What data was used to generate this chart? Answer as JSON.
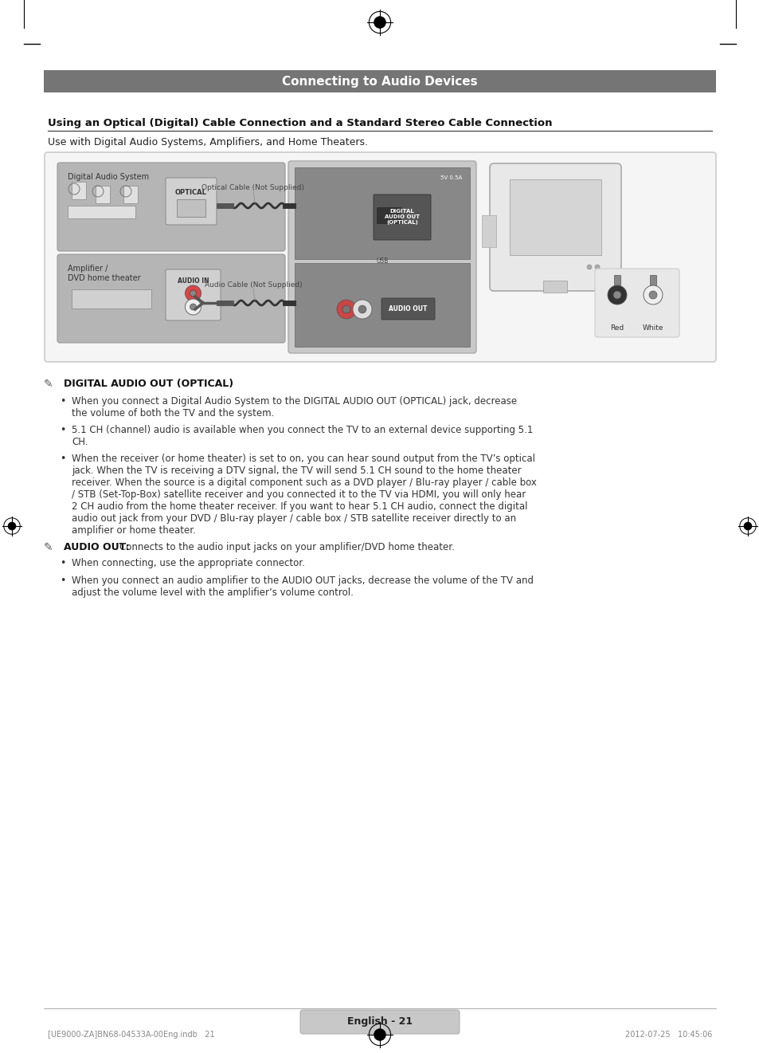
{
  "page_bg": "#ffffff",
  "header_bg": "#757575",
  "header_text": "Connecting to Audio Devices",
  "header_text_color": "#ffffff",
  "section_title": "Using an Optical (Digital) Cable Connection and a Standard Stereo Cable Connection",
  "section_subtitle": "Use with Digital Audio Systems, Amplifiers, and Home Theaters.",
  "note1_title": "DIGITAL AUDIO OUT (OPTICAL)",
  "note1_bullets": [
    "When you connect a Digital Audio System to the DIGITAL AUDIO OUT (OPTICAL) jack, decrease\nthe volume of both the TV and the system.",
    "5.1 CH (channel) audio is available when you connect the TV to an external device supporting 5.1\nCH.",
    "When the receiver (or home theater) is set to on, you can hear sound output from the TV’s optical\njack. When the TV is receiving a DTV signal, the TV will send 5.1 CH sound to the home theater\nreceiver. When the source is a digital component such as a DVD player / Blu-ray player / cable box\n/ STB (Set-Top-Box) satellite receiver and you connected it to the TV via HDMI, you will only hear\n2 CH audio from the home theater receiver. If you want to hear 5.1 CH audio, connect the digital\naudio out jack from your DVD / Blu-ray player / cable box / STB satellite receiver directly to an\namplifier or home theater."
  ],
  "note2_title": "AUDIO OUT",
  "note2_intro": "Connects to the audio input jacks on your amplifier/DVD home theater.",
  "note2_bullets": [
    "When connecting, use the appropriate connector.",
    "When you connect an audio amplifier to the AUDIO OUT jacks, decrease the volume of the TV and\nadjust the volume level with the amplifier’s volume control."
  ],
  "footer_text": "English - 21",
  "footer_left": "[UE9000-ZA]BN68-04533A-00Eng.indb   21",
  "footer_right": "2012-07-25   10:45:06",
  "diagram_box_color": "#e8e8e8",
  "diagram_box_border": "#cccccc",
  "diagram_label1": "Digital Audio System",
  "diagram_label1_bg": "#b0b0b0",
  "diagram_label2": "Amplifier /\nDVD home theater",
  "diagram_label2_bg": "#b0b0b0",
  "optical_cable_label": "Optical Cable (Not Supplied)",
  "audio_cable_label": "Audio Cable (Not Supplied)",
  "digital_out_label": "DIGITAL\nAUDIO OUT\n(OPTICAL)",
  "audio_out_label": "AUDIO OUT",
  "optical_label": "OPTICAL",
  "audio_in_label": "AUDIO IN",
  "connector_labels": [
    "Red",
    "White"
  ]
}
